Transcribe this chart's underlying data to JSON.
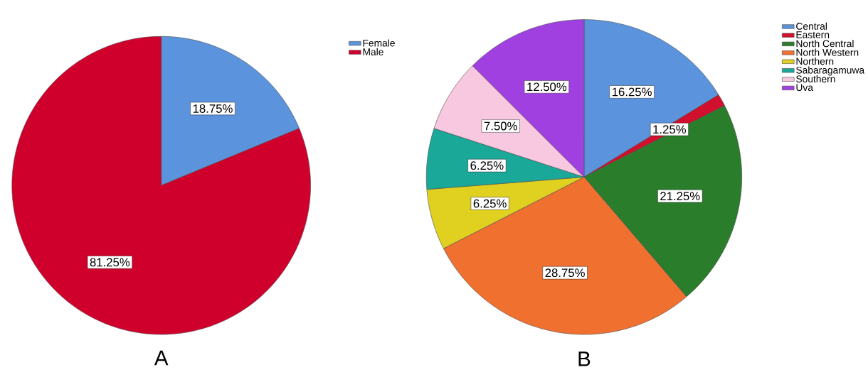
{
  "chart_data": [
    {
      "type": "pie",
      "title": "A",
      "categories": [
        "Female",
        "Male"
      ],
      "values": [
        18.75,
        81.25
      ],
      "colors": [
        "#5b93dd",
        "#d0002c"
      ],
      "value_labels": [
        "18.75%",
        "81.25%"
      ],
      "legend": "top right"
    },
    {
      "type": "pie",
      "title": "B",
      "categories": [
        "Central",
        "Eastern",
        "North Central",
        "North Western",
        "Northern",
        "Sabaragamuwa",
        "Southern",
        "Uva"
      ],
      "values": [
        16.25,
        1.25,
        21.25,
        28.75,
        6.25,
        6.25,
        7.5,
        12.5
      ],
      "colors": [
        "#5b93dd",
        "#d0102c",
        "#2a7d2a",
        "#f07030",
        "#e0d020",
        "#1aa898",
        "#f8c8e0",
        "#a040e0"
      ],
      "value_labels": [
        "16.25%",
        "1.25%",
        "21.25%",
        "28.75%",
        "6.25%",
        "6.25%",
        "7.50%",
        "12.50%"
      ],
      "legend": "top right"
    }
  ]
}
